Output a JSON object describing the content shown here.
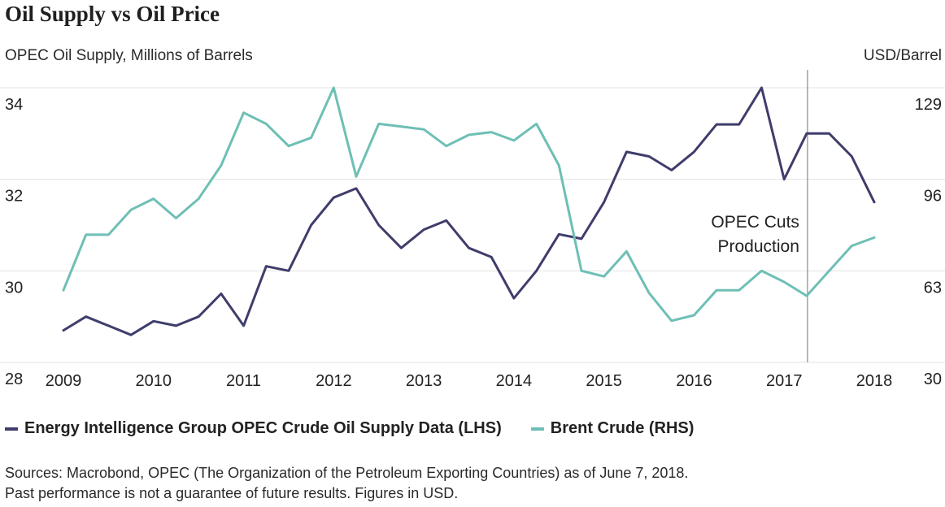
{
  "title": "Oil Supply vs Oil Price",
  "chart_data": {
    "type": "line",
    "title": "Oil Supply vs Oil Price",
    "ylabel_left": "OPEC Oil Supply, Millions of Barrels",
    "ylabel_right": "USD/Barrel",
    "ylim_left": [
      28,
      34
    ],
    "ylim_right": [
      30,
      129
    ],
    "yticks_left": [
      28,
      30,
      32,
      34
    ],
    "yticks_right": [
      30,
      63,
      96,
      129
    ],
    "xlim": [
      2009,
      2018
    ],
    "xticks": [
      2009,
      2010,
      2011,
      2012,
      2013,
      2014,
      2015,
      2016,
      2017,
      2018
    ],
    "grid": true,
    "series": [
      {
        "name": "Energy Intelligence Group OPEC Crude Oil Supply Data (LHS)",
        "axis": "left",
        "color": "#3f3d6b",
        "x": [
          2009,
          2009.25,
          2009.5,
          2009.75,
          2010,
          2010.25,
          2010.5,
          2010.75,
          2011,
          2011.25,
          2011.5,
          2011.75,
          2012,
          2012.25,
          2012.5,
          2012.75,
          2013,
          2013.25,
          2013.5,
          2013.75,
          2014,
          2014.25,
          2014.5,
          2014.75,
          2015,
          2015.25,
          2015.5,
          2015.75,
          2016,
          2016.25,
          2016.5,
          2016.75,
          2017,
          2017.25,
          2017.5,
          2017.75,
          2018
        ],
        "y": [
          28.7,
          29.0,
          28.8,
          28.6,
          28.9,
          28.8,
          29.0,
          29.5,
          28.8,
          30.1,
          30.0,
          31.0,
          31.6,
          31.8,
          31.0,
          30.5,
          30.9,
          31.1,
          30.5,
          30.3,
          29.4,
          30.0,
          30.8,
          30.7,
          31.5,
          32.6,
          32.5,
          32.2,
          32.6,
          33.2,
          33.2,
          34.0,
          32.0,
          33.0,
          33.0,
          32.5,
          31.5
        ]
      },
      {
        "name": "Brent Crude (RHS)",
        "axis": "right",
        "color": "#6ebfb5",
        "x": [
          2009,
          2009.25,
          2009.5,
          2009.75,
          2010,
          2010.25,
          2010.5,
          2010.75,
          2011,
          2011.25,
          2011.5,
          2011.75,
          2012,
          2012.25,
          2012.5,
          2012.75,
          2013,
          2013.25,
          2013.5,
          2013.75,
          2014,
          2014.25,
          2014.5,
          2014.75,
          2015,
          2015.25,
          2015.5,
          2015.75,
          2016,
          2016.25,
          2016.5,
          2016.75,
          2017,
          2017.25,
          2017.5,
          2017.75,
          2018
        ],
        "y": [
          56,
          76,
          76,
          85,
          89,
          82,
          89,
          101,
          120,
          116,
          108,
          111,
          129,
          97,
          116,
          115,
          114,
          108,
          112,
          113,
          110,
          116,
          101,
          63,
          61,
          70,
          55,
          45,
          47,
          56,
          56,
          63,
          59,
          54,
          63,
          72,
          75
        ]
      }
    ],
    "annotations": [
      {
        "text_lines": [
          "OPEC Cuts",
          "Production"
        ],
        "x": 2017.25,
        "type": "vertical-line"
      }
    ]
  },
  "legend": {
    "items": [
      {
        "label": "Energy Intelligence Group OPEC Crude Oil Supply Data (LHS)",
        "color": "#3f3d6b"
      },
      {
        "label": "Brent Crude (RHS)",
        "color": "#6ebfb5"
      }
    ]
  },
  "source": {
    "line1": "Sources: Macrobond, OPEC (The Organization of the Petroleum Exporting Countries) as of June 7, 2018.",
    "line2": "Past performance is not a guarantee of future results. Figures in USD."
  }
}
